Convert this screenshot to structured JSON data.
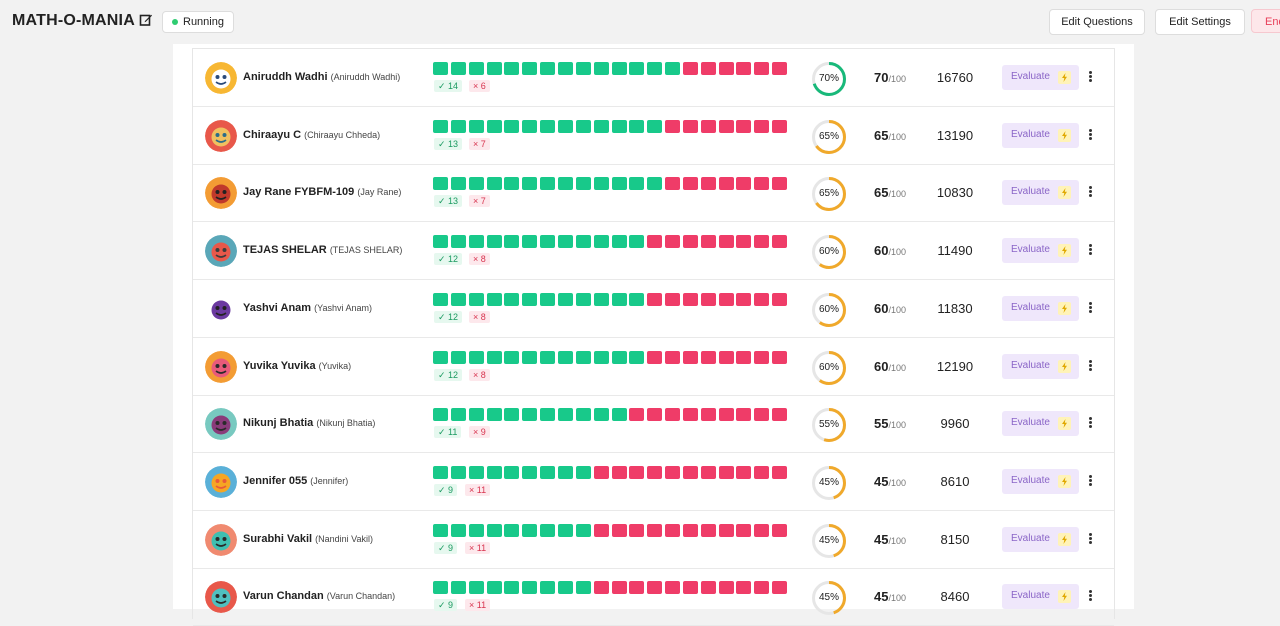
{
  "header": {
    "title": "MATH-O-MANIA",
    "status": "Running",
    "edit_questions_label": "Edit Questions",
    "edit_settings_label": "Edit Settings",
    "end_label": "End",
    "status_color": "#2ecc71"
  },
  "icons": {
    "edit": "pencil-square-icon",
    "status": "green-dot-icon",
    "evaluate": "lightning-bolt-icon",
    "menu": "more-vertical-icon"
  },
  "colors": {
    "correct": "#18c98a",
    "incorrect": "#ef3c68",
    "ring_high": "#18b97a",
    "ring_mid": "#f0a92b",
    "evaluate_bg": "#efe7fb"
  },
  "total_questions": 20,
  "score_max": "/100",
  "evaluate_label": "Evaluate",
  "participants": [
    {
      "name": "Aniruddh Wadhi",
      "full_name": "(Aniruddh Wadhi)",
      "correct": 14,
      "incorrect": 6,
      "correct_label": "✓ 14",
      "incorrect_label": "× 6",
      "percent": "70%",
      "score": "70",
      "points": "16760"
    },
    {
      "name": "Chiraayu C",
      "full_name": "(Chiraayu Chheda)",
      "correct": 13,
      "incorrect": 7,
      "correct_label": "✓ 13",
      "incorrect_label": "× 7",
      "percent": "65%",
      "score": "65",
      "points": "13190"
    },
    {
      "name": "Jay Rane FYBFM-109",
      "full_name": "(Jay Rane)",
      "correct": 13,
      "incorrect": 7,
      "correct_label": "✓ 13",
      "incorrect_label": "× 7",
      "percent": "65%",
      "score": "65",
      "points": "10830"
    },
    {
      "name": "TEJAS SHELAR",
      "full_name": "(TEJAS SHELAR)",
      "correct": 12,
      "incorrect": 8,
      "correct_label": "✓ 12",
      "incorrect_label": "× 8",
      "percent": "60%",
      "score": "60",
      "points": "11490"
    },
    {
      "name": "Yashvi Anam",
      "full_name": "(Yashvi Anam)",
      "correct": 12,
      "incorrect": 8,
      "correct_label": "✓ 12",
      "incorrect_label": "× 8",
      "percent": "60%",
      "score": "60",
      "points": "11830"
    },
    {
      "name": "Yuvika Yuvika",
      "full_name": "(Yuvika)",
      "correct": 12,
      "incorrect": 8,
      "correct_label": "✓ 12",
      "incorrect_label": "× 8",
      "percent": "60%",
      "score": "60",
      "points": "12190"
    },
    {
      "name": "Nikunj Bhatia",
      "full_name": "(Nikunj Bhatia)",
      "correct": 11,
      "incorrect": 9,
      "correct_label": "✓ 11",
      "incorrect_label": "× 9",
      "percent": "55%",
      "score": "55",
      "points": "9960"
    },
    {
      "name": "Jennifer 055",
      "full_name": "(Jennifer)",
      "correct": 9,
      "incorrect": 11,
      "correct_label": "✓ 9",
      "incorrect_label": "× 11",
      "percent": "45%",
      "score": "45",
      "points": "8610"
    },
    {
      "name": "Surabhi Vakil",
      "full_name": "(Nandini Vakil)",
      "correct": 9,
      "incorrect": 11,
      "correct_label": "✓ 9",
      "incorrect_label": "× 11",
      "percent": "45%",
      "score": "45",
      "points": "8150"
    },
    {
      "name": "Varun Chandan",
      "full_name": "(Varun Chandan)",
      "correct": 9,
      "incorrect": 11,
      "correct_label": "✓ 9",
      "incorrect_label": "× 11",
      "percent": "45%",
      "score": "45",
      "points": "8460"
    }
  ]
}
